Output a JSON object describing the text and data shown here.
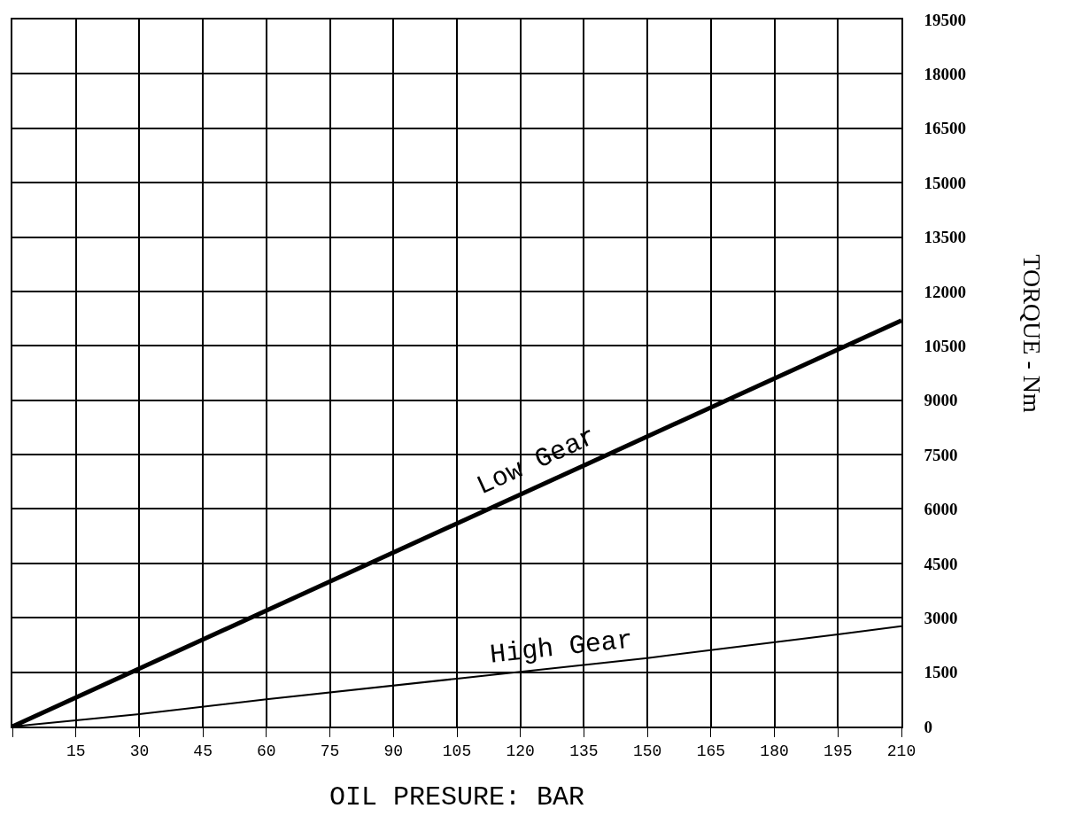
{
  "chart_data": {
    "type": "line",
    "xlabel": "OIL PRESURE: BAR",
    "ylabel": "TORQUE - Nm",
    "xlim": [
      0,
      210
    ],
    "xticks": [
      {
        "value": 0,
        "label": null
      },
      15,
      30,
      45,
      60,
      75,
      90,
      105,
      120,
      135,
      150,
      165,
      180,
      195,
      210
    ],
    "ylim": [
      0,
      19500
    ],
    "yticks": [
      0,
      1500,
      3000,
      4500,
      6000,
      7500,
      9000,
      10500,
      12000,
      13500,
      15000,
      16500,
      18000,
      19500
    ],
    "grid": true,
    "legend": false,
    "marker": "none",
    "line_style": "solid",
    "series": [
      {
        "name": "Low Gear",
        "color": "#000000",
        "x": [
          0,
          210
        ],
        "values": [
          0,
          11200
        ]
      },
      {
        "name": "High Gear",
        "color": "#000000",
        "x": [
          0,
          30,
          60,
          105,
          150,
          195,
          210
        ],
        "values": [
          0,
          340,
          750,
          1320,
          1890,
          2540,
          2770
        ]
      }
    ]
  }
}
